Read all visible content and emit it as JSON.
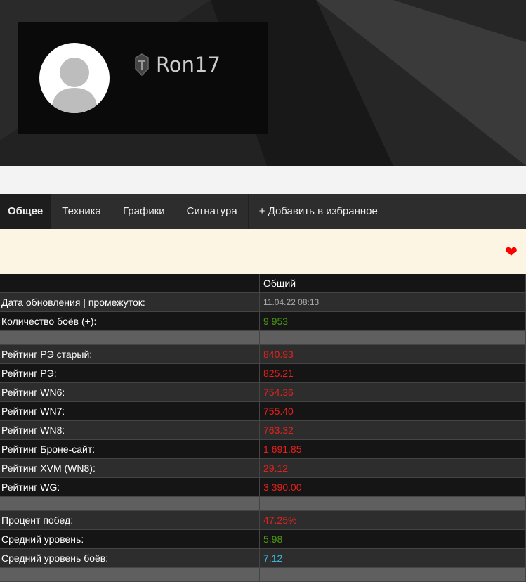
{
  "profile": {
    "name": "Ron17",
    "icon": "wot-shield-icon"
  },
  "tabs": [
    "Общее",
    "Техника",
    "Графики",
    "Сигнатура",
    "+ Добавить в избранное"
  ],
  "notice": {
    "icon": "heart-icon",
    "color": "#ff0000"
  },
  "table": {
    "header": "Общий",
    "rows": [
      {
        "label": "Дата обновления | промежуток:",
        "value": "11.04.22 08:13",
        "color": "grey"
      },
      {
        "label": "Количество боёв (+):",
        "value": "9 953",
        "color": "green"
      },
      {
        "label": "Рейтинг РЭ старый:",
        "value": "840.93",
        "color": "red"
      },
      {
        "label": "Рейтинг РЭ:",
        "value": "825.21",
        "color": "red"
      },
      {
        "label": "Рейтинг WN6:",
        "value": "754.36",
        "color": "red"
      },
      {
        "label": "Рейтинг WN7:",
        "value": "755.40",
        "color": "red"
      },
      {
        "label": "Рейтинг WN8:",
        "value": "763.32",
        "color": "red"
      },
      {
        "label": "Рейтинг Броне-сайт:",
        "value": "1 691.85",
        "color": "red"
      },
      {
        "label": "Рейтинг XVM (WN8):",
        "value": "29.12",
        "color": "red"
      },
      {
        "label": "Рейтинг WG:",
        "value": "3 390.00",
        "color": "red"
      },
      {
        "label": "Процент побед:",
        "value": "47.25%",
        "color": "red"
      },
      {
        "label": "Средний уровень:",
        "value": "5.98",
        "color": "green"
      },
      {
        "label": "Средний уровень боёв:",
        "value": "7.12",
        "color": "blue"
      }
    ]
  }
}
